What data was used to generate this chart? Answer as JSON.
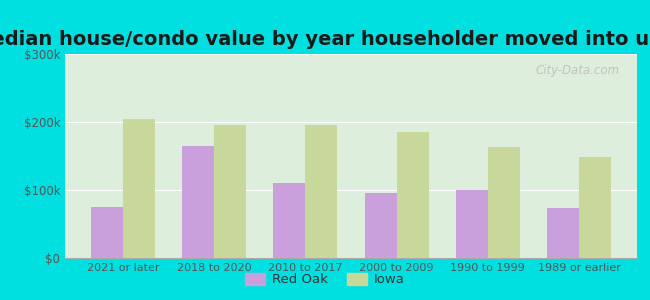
{
  "title": "Median house/condo value by year householder moved into unit",
  "categories": [
    "2021 or later",
    "2018 to 2020",
    "2010 to 2017",
    "2000 to 2009",
    "1990 to 1999",
    "1989 or earlier"
  ],
  "red_oak_values": [
    75000,
    165000,
    110000,
    95000,
    100000,
    73000
  ],
  "iowa_values": [
    205000,
    195000,
    195000,
    185000,
    163000,
    148000
  ],
  "red_oak_color": "#c9a0dc",
  "iowa_color": "#c8d89a",
  "background_outer": "#00e0e0",
  "background_inner": "#ddeedd",
  "ylim": [
    0,
    300000
  ],
  "yticks": [
    0,
    100000,
    200000,
    300000
  ],
  "ytick_labels": [
    "$0",
    "$100k",
    "$200k",
    "$300k"
  ],
  "bar_width": 0.35,
  "legend_labels": [
    "Red Oak",
    "Iowa"
  ],
  "watermark": "City-Data.com",
  "title_fontsize": 14,
  "title_color": "#1a1a1a"
}
